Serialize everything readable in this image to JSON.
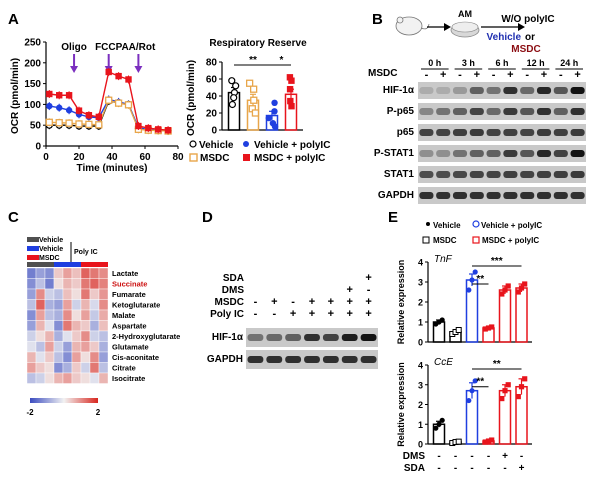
{
  "panels": {
    "A": {
      "label": "A",
      "ocr_plot": {
        "ylabel": "OCR (pmol/min)",
        "xlabel": "Time (minutes)",
        "yticks": [
          "0",
          "50",
          "100",
          "150",
          "200",
          "250"
        ],
        "xticks": [
          "0",
          "20",
          "40",
          "60",
          "80"
        ],
        "injections": [
          {
            "label": "Oligo",
            "time": 17
          },
          {
            "label": "FCCP",
            "time": 38
          },
          {
            "label": "AA/Rot",
            "time": 56
          }
        ]
      },
      "reserve_plot": {
        "title": "Respiratory Reserve",
        "ylabel": "OCR (pmol/min)",
        "yticks": [
          "0",
          "20",
          "40",
          "60",
          "80"
        ],
        "sig": [
          {
            "text": "**",
            "from": 0,
            "to": 2
          },
          {
            "text": "*",
            "from": 2,
            "to": 3
          }
        ]
      },
      "legend": [
        {
          "key": "vehicle",
          "label": "Vehicle",
          "color": "#000000"
        },
        {
          "key": "vehicle_polyic",
          "label": "Vehicle + polyIC",
          "color": "#1f3fe0"
        },
        {
          "key": "msdc",
          "label": "MSDC",
          "color": "#e8a64a"
        },
        {
          "key": "msdc_polyic",
          "label": "MSDC + polyIC",
          "color": "#e8141c"
        }
      ]
    },
    "B": {
      "label": "B",
      "schema": {
        "step1": "AM",
        "treatment": "W/O polyIC",
        "option1": "Vehicle",
        "option_joiner": "or",
        "option2": "MSDC"
      },
      "timepoints": [
        "0 h",
        "3 h",
        "6 h",
        "12 h",
        "24 h"
      ],
      "msdc_row_label": "MSDC",
      "msdc_signs": [
        "-",
        "+",
        "-",
        "+",
        "-",
        "+",
        "-",
        "+",
        "-",
        "+"
      ],
      "bands": [
        "HIF-1α",
        "P-p65",
        "p65",
        "P-STAT1",
        "STAT1",
        "GAPDH"
      ]
    },
    "C": {
      "label": "C",
      "legend": [
        {
          "label": "Vehicle",
          "color": "#505050"
        },
        {
          "label": "Vehicle",
          "color": "#1f3fe0"
        },
        {
          "label": "MSDC",
          "color": "#e8141c"
        }
      ],
      "polyic_label": "Poly IC",
      "metabolites": [
        {
          "name": "Lactate",
          "color": "#000000"
        },
        {
          "name": "Succinate",
          "color": "#cc1111"
        },
        {
          "name": "Fumarate",
          "color": "#000000"
        },
        {
          "name": "Ketoglutarate",
          "color": "#000000"
        },
        {
          "name": "Malate",
          "color": "#000000"
        },
        {
          "name": "Aspartate",
          "color": "#000000"
        },
        {
          "name": "2-Hydroxyglutarate",
          "color": "#000000"
        },
        {
          "name": "Glutamate",
          "color": "#000000"
        },
        {
          "name": "Cis-aconitate",
          "color": "#000000"
        },
        {
          "name": "Citrate",
          "color": "#000000"
        },
        {
          "name": "Isocitrate",
          "color": "#000000"
        }
      ],
      "scale_min": "-2",
      "scale_max": "2",
      "heatmap": [
        [
          -1.4,
          -1.0,
          -1.2,
          0.4,
          0.8,
          0.5,
          1.4,
          1.2,
          1.0
        ],
        [
          -1.2,
          -0.6,
          -1.4,
          0.2,
          0.6,
          0.4,
          1.2,
          1.4,
          1.1
        ],
        [
          -1.0,
          1.0,
          -0.4,
          -0.6,
          0.5,
          0.2,
          1.2,
          0.4,
          0.9
        ],
        [
          -0.6,
          1.4,
          -0.8,
          -1.0,
          0.8,
          -0.4,
          0.6,
          -0.3,
          1.0
        ],
        [
          -1.2,
          0.8,
          -0.6,
          -0.8,
          1.0,
          0.2,
          0.8,
          -0.5,
          0.7
        ],
        [
          -1.0,
          0.6,
          -0.2,
          -1.2,
          1.2,
          0.6,
          0.4,
          -0.8,
          0.5
        ],
        [
          -0.4,
          0.2,
          0.6,
          -0.8,
          -0.2,
          0.4,
          1.0,
          -0.4,
          -0.6
        ],
        [
          -0.2,
          -0.6,
          0.8,
          -0.4,
          -1.0,
          0.6,
          0.8,
          0.4,
          -0.8
        ],
        [
          0.6,
          -0.2,
          0.4,
          -0.6,
          -1.2,
          0.8,
          0.2,
          1.0,
          -1.0
        ],
        [
          0.8,
          0.4,
          0.2,
          -1.2,
          -0.8,
          0.4,
          -0.4,
          1.2,
          -0.6
        ],
        [
          -0.6,
          -0.4,
          0.2,
          0.6,
          0.8,
          0.4,
          0.2,
          -0.2,
          0.6
        ]
      ]
    },
    "D": {
      "label": "D",
      "rows": [
        {
          "label": "SDA",
          "signs": [
            "",
            "",
            "",
            "",
            "",
            "",
            "+"
          ]
        },
        {
          "label": "DMS",
          "signs": [
            "",
            "",
            "",
            "",
            "",
            "+",
            "-"
          ]
        },
        {
          "label": "MSDC",
          "signs": [
            "-",
            "+",
            "-",
            "+",
            "+",
            "+",
            "+"
          ]
        },
        {
          "label": "Poly IC",
          "signs": [
            "-",
            "-",
            "+",
            "+",
            "+",
            "+",
            "+"
          ]
        }
      ],
      "bands": [
        "HIF-1α",
        "GAPDH"
      ]
    },
    "E": {
      "label": "E",
      "legend": [
        {
          "label": "Vehicle",
          "color": "#000000"
        },
        {
          "label": "Vehicle + polyIC",
          "color": "#1f3fe0"
        },
        {
          "label": "MSDC",
          "color": "#000000"
        },
        {
          "label": "MSDC + polyIC",
          "color": "#e8141c"
        }
      ],
      "plots": [
        {
          "gene": "TnF",
          "ylabel": "Relative expression",
          "yticks": [
            "0",
            "1",
            "2",
            "3",
            "4"
          ],
          "sig": [
            {
              "text": "**",
              "from": 2,
              "to": 3
            },
            {
              "text": "***",
              "from": 2,
              "to": 5
            }
          ]
        },
        {
          "gene": "CcE",
          "ylabel": "Relative expression",
          "yticks": [
            "0",
            "1",
            "2",
            "3",
            "4"
          ],
          "sig": [
            {
              "text": "**",
              "from": 2,
              "to": 3
            },
            {
              "text": "**",
              "from": 2,
              "to": 5
            }
          ]
        }
      ],
      "treat_rows": [
        {
          "label": "DMS",
          "signs": [
            "-",
            "-",
            "-",
            "-",
            "+",
            "-"
          ]
        },
        {
          "label": "SDA",
          "signs": [
            "-",
            "-",
            "-",
            "-",
            "-",
            "+"
          ]
        }
      ]
    }
  },
  "chart_data": [
    {
      "type": "line",
      "xlabel": "Time (minutes)",
      "ylabel": "OCR (pmol/min)",
      "xlim": [
        0,
        80
      ],
      "ylim": [
        0,
        250
      ],
      "x": [
        2,
        8,
        14,
        20,
        26,
        32,
        38,
        44,
        50,
        56,
        62,
        68,
        74
      ],
      "series": [
        {
          "name": "Vehicle",
          "color": "#000000",
          "marker": "open-circle",
          "values": [
            50,
            50,
            50,
            48,
            48,
            48,
            108,
            104,
            100,
            42,
            40,
            38,
            37
          ]
        },
        {
          "name": "Vehicle + polyIC",
          "color": "#1f3fe0",
          "marker": "filled-circle",
          "values": [
            96,
            92,
            86,
            76,
            70,
            68,
            112,
            106,
            100,
            44,
            40,
            38,
            36
          ]
        },
        {
          "name": "MSDC",
          "color": "#e8a64a",
          "marker": "open-square",
          "values": [
            57,
            56,
            55,
            53,
            52,
            51,
            110,
            103,
            99,
            40,
            38,
            37,
            36
          ]
        },
        {
          "name": "MSDC + polyIC",
          "color": "#e8141c",
          "marker": "filled-square",
          "values": [
            125,
            122,
            122,
            85,
            74,
            70,
            178,
            168,
            160,
            48,
            43,
            40,
            38
          ]
        }
      ]
    },
    {
      "type": "bar",
      "title": "Respiratory Reserve",
      "ylabel": "OCR (pmol/min)",
      "ylim": [
        0,
        80
      ],
      "categories": [
        "Vehicle",
        "MSDC",
        "Vehicle + polyIC",
        "MSDC + polyIC"
      ],
      "series": [
        {
          "name": "Respiratory Reserve",
          "values": [
            44,
            35,
            17,
            42
          ],
          "errors": [
            6,
            7,
            5,
            6
          ],
          "points": [
            [
              58,
              52,
              44,
              38,
              30
            ],
            [
              55,
              48,
              35,
              25,
              20
            ],
            [
              32,
              22,
              14,
              8,
              4
            ],
            [
              62,
              58,
              48,
              34,
              28
            ]
          ],
          "colors": [
            "#000000",
            "#e8a64a",
            "#1f3fe0",
            "#e8141c"
          ]
        }
      ]
    },
    {
      "type": "heatmap",
      "rows": [
        "Lactate",
        "Succinate",
        "Fumarate",
        "Ketoglutarate",
        "Malate",
        "Aspartate",
        "2-Hydroxyglutarate",
        "Glutamate",
        "Cis-aconitate",
        "Citrate",
        "Isocitrate"
      ],
      "columns": [
        "Vehicle",
        "Vehicle",
        "Vehicle",
        "Vehicle + Poly IC",
        "Vehicle + Poly IC",
        "Vehicle + Poly IC",
        "MSDC + Poly IC",
        "MSDC + Poly IC",
        "MSDC + Poly IC"
      ],
      "range": [
        -2,
        2
      ]
    },
    {
      "type": "bar",
      "ylabel": "Relative expression",
      "ylim": [
        0,
        4
      ],
      "categories": [
        "Vehicle",
        "MSDC",
        "Vehicle + polyIC",
        "MSDC + polyIC",
        "MSDC + polyIC + DMS",
        "MSDC + polyIC + SDA"
      ],
      "series": [
        {
          "name": "TnF",
          "values": [
            1.0,
            0.5,
            3.1,
            0.7,
            2.6,
            2.7
          ],
          "errors": [
            0.1,
            0.1,
            0.3,
            0.05,
            0.2,
            0.2
          ],
          "points": [
            [
              0.9,
              1.0,
              1.1
            ],
            [
              0.4,
              0.5,
              0.6
            ],
            [
              2.6,
              3.1,
              3.5
            ],
            [
              0.65,
              0.7,
              0.75
            ],
            [
              2.4,
              2.6,
              2.8
            ],
            [
              2.5,
              2.7,
              2.9
            ]
          ],
          "colors": [
            "#000000",
            "#000000",
            "#1f3fe0",
            "#e8141c",
            "#e8141c",
            "#e8141c"
          ]
        }
      ]
    },
    {
      "type": "bar",
      "ylabel": "Relative expression",
      "ylim": [
        0,
        4
      ],
      "categories": [
        "Vehicle",
        "MSDC",
        "Vehicle + polyIC",
        "MSDC + polyIC",
        "MSDC + polyIC + DMS",
        "MSDC + polyIC + SDA"
      ],
      "series": [
        {
          "name": "CcE",
          "values": [
            1.0,
            0.1,
            2.7,
            0.15,
            2.7,
            2.9
          ],
          "errors": [
            0.15,
            0.05,
            0.4,
            0.05,
            0.3,
            0.4
          ],
          "points": [
            [
              0.8,
              1.0,
              1.2
            ],
            [
              0.05,
              0.1,
              0.12
            ],
            [
              2.2,
              2.7,
              3.2
            ],
            [
              0.1,
              0.15,
              0.2
            ],
            [
              2.3,
              2.7,
              3.0
            ],
            [
              2.4,
              2.9,
              3.3
            ]
          ],
          "colors": [
            "#000000",
            "#000000",
            "#1f3fe0",
            "#e8141c",
            "#e8141c",
            "#e8141c"
          ]
        }
      ]
    }
  ]
}
